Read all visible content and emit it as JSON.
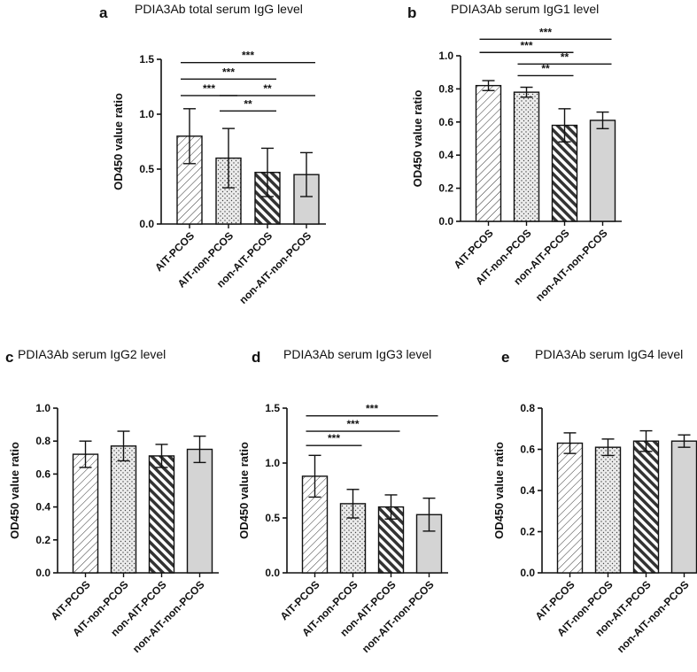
{
  "figure": {
    "panels": [
      {
        "letter": "a",
        "title": "PDIA3Ab total serum IgG level"
      },
      {
        "letter": "b",
        "title": "PDIA3Ab serum IgG1 level"
      },
      {
        "letter": "c",
        "title": "PDIA3Ab serum IgG2 level"
      },
      {
        "letter": "d",
        "title": "PDIA3Ab serum IgG3 level"
      },
      {
        "letter": "e",
        "title": "PDIA3Ab serum IgG4 level"
      }
    ]
  },
  "chart_data": [
    {
      "type": "bar",
      "letter": "a",
      "title": "PDIA3Ab total serum IgG level",
      "ylabel": "OD450 value ratio",
      "xlabel": "",
      "categories": [
        "AIT-PCOS",
        "AIT-non-PCOS",
        "non-AIT-PCOS",
        "non-AIT-non-PCOS"
      ],
      "values": [
        0.8,
        0.6,
        0.47,
        0.45
      ],
      "errors": [
        0.25,
        0.27,
        0.22,
        0.2
      ],
      "ylim": [
        0,
        1.5
      ],
      "yticks": [
        0,
        0.5,
        1.0,
        1.5
      ],
      "ytick_labels": [
        "0.0",
        "0.5",
        "1.0",
        "1.5"
      ],
      "patterns": [
        "diag",
        "dots",
        "hatch",
        "solid"
      ],
      "significance": [
        {
          "from": 0,
          "to": 1,
          "label": "***",
          "y": 1.17
        },
        {
          "from": 1,
          "to": 2,
          "label": "**",
          "y": 1.03
        },
        {
          "from": 0,
          "to": 2,
          "label": "***",
          "y": 1.32
        },
        {
          "from": 1,
          "to": 3,
          "label": "**",
          "y": 1.17
        },
        {
          "from": 0,
          "to": 3,
          "label": "***",
          "y": 1.47
        }
      ]
    },
    {
      "type": "bar",
      "letter": "b",
      "title": "PDIA3Ab serum IgG1 level",
      "ylabel": "OD450 value ratio",
      "xlabel": "",
      "categories": [
        "AIT-PCOS",
        "AIT-non-PCOS",
        "non-AIT-PCOS",
        "non-AIT-non-PCOS"
      ],
      "values": [
        0.82,
        0.78,
        0.58,
        0.61
      ],
      "errors": [
        0.03,
        0.03,
        0.1,
        0.05
      ],
      "ylim": [
        0,
        1.0
      ],
      "yticks": [
        0,
        0.2,
        0.4,
        0.6,
        0.8,
        1.0
      ],
      "ytick_labels": [
        "0.0",
        "0.2",
        "0.4",
        "0.6",
        "0.8",
        "1.0"
      ],
      "patterns": [
        "diag",
        "dots",
        "hatch",
        "solid"
      ],
      "significance": [
        {
          "from": 1,
          "to": 2,
          "label": "**",
          "y": 0.88
        },
        {
          "from": 1,
          "to": 3,
          "label": "**",
          "y": 0.95
        },
        {
          "from": 0,
          "to": 2,
          "label": "***",
          "y": 1.02
        },
        {
          "from": 0,
          "to": 3,
          "label": "***",
          "y": 1.1
        }
      ]
    },
    {
      "type": "bar",
      "letter": "c",
      "title": "PDIA3Ab serum IgG2 level",
      "ylabel": "OD450 value ratio",
      "xlabel": "",
      "categories": [
        "AIT-PCOS",
        "AIT-non-PCOS",
        "non-AIT-PCOS",
        "non-AIT-non-PCOS"
      ],
      "values": [
        0.72,
        0.77,
        0.71,
        0.75
      ],
      "errors": [
        0.08,
        0.09,
        0.07,
        0.08
      ],
      "ylim": [
        0,
        1.0
      ],
      "yticks": [
        0,
        0.2,
        0.4,
        0.6,
        0.8,
        1.0
      ],
      "ytick_labels": [
        "0.0",
        "0.2",
        "0.4",
        "0.6",
        "0.8",
        "1.0"
      ],
      "patterns": [
        "diag",
        "dots",
        "hatch",
        "solid"
      ],
      "significance": []
    },
    {
      "type": "bar",
      "letter": "d",
      "title": "PDIA3Ab serum IgG3 level",
      "ylabel": "OD450 value ratio",
      "xlabel": "",
      "categories": [
        "AIT-PCOS",
        "AIT-non-PCOS",
        "non-AIT-PCOS",
        "non-AIT-non-PCOS"
      ],
      "values": [
        0.88,
        0.63,
        0.6,
        0.53
      ],
      "errors": [
        0.19,
        0.13,
        0.11,
        0.15
      ],
      "ylim": [
        0,
        1.5
      ],
      "yticks": [
        0,
        0.5,
        1.0,
        1.5
      ],
      "ytick_labels": [
        "0.0",
        "0.5",
        "1.0",
        "1.5"
      ],
      "patterns": [
        "diag",
        "dots",
        "hatch",
        "solid"
      ],
      "significance": [
        {
          "from": 0,
          "to": 1,
          "label": "***",
          "y": 1.16
        },
        {
          "from": 0,
          "to": 2,
          "label": "***",
          "y": 1.29
        },
        {
          "from": 0,
          "to": 3,
          "label": "***",
          "y": 1.43
        }
      ]
    },
    {
      "type": "bar",
      "letter": "e",
      "title": "PDIA3Ab serum IgG4 level",
      "ylabel": "OD450 value ratio",
      "xlabel": "",
      "categories": [
        "AIT-PCOS",
        "AIT-non-PCOS",
        "non-AIT-PCOS",
        "non-AIT-non-PCOS"
      ],
      "values": [
        0.63,
        0.61,
        0.64,
        0.64
      ],
      "errors": [
        0.05,
        0.04,
        0.05,
        0.03
      ],
      "ylim": [
        0,
        0.8
      ],
      "yticks": [
        0,
        0.2,
        0.4,
        0.6,
        0.8
      ],
      "ytick_labels": [
        "0.0",
        "0.2",
        "0.4",
        "0.6",
        "0.8"
      ],
      "patterns": [
        "diag",
        "dots",
        "hatch",
        "solid"
      ],
      "significance": []
    }
  ]
}
